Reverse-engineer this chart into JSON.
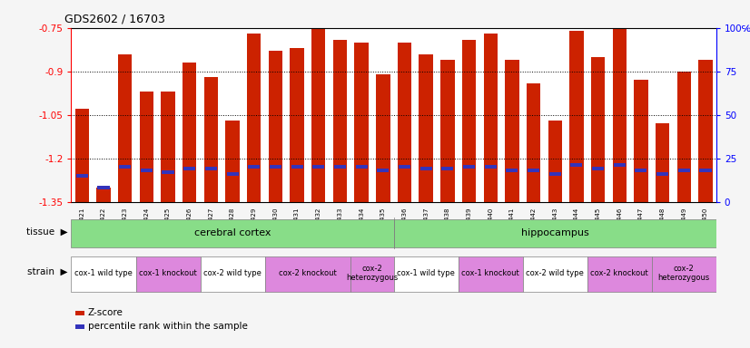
{
  "title": "GDS2602 / 16703",
  "samples": [
    "GSM121421",
    "GSM121422",
    "GSM121423",
    "GSM121424",
    "GSM121425",
    "GSM121426",
    "GSM121427",
    "GSM121428",
    "GSM121429",
    "GSM121430",
    "GSM121431",
    "GSM121432",
    "GSM121433",
    "GSM121434",
    "GSM121435",
    "GSM121436",
    "GSM121437",
    "GSM121438",
    "GSM121439",
    "GSM121440",
    "GSM121441",
    "GSM121442",
    "GSM121443",
    "GSM121444",
    "GSM121445",
    "GSM121446",
    "GSM121447",
    "GSM121448",
    "GSM121449",
    "GSM121450"
  ],
  "zscore": [
    -1.03,
    -1.3,
    -0.84,
    -0.97,
    -0.97,
    -0.87,
    -0.92,
    -1.07,
    -0.77,
    -0.83,
    -0.82,
    -0.75,
    -0.79,
    -0.8,
    -0.91,
    -0.8,
    -0.84,
    -0.86,
    -0.79,
    -0.77,
    -0.86,
    -0.94,
    -1.07,
    -0.76,
    -0.85,
    -0.75,
    -0.93,
    -1.08,
    -0.9,
    -0.86
  ],
  "percentile": [
    15,
    8,
    20,
    18,
    17,
    19,
    19,
    16,
    20,
    20,
    20,
    20,
    20,
    20,
    18,
    20,
    19,
    19,
    20,
    20,
    18,
    18,
    16,
    21,
    19,
    21,
    18,
    16,
    18,
    18
  ],
  "ymin": -1.35,
  "ymax": -0.75,
  "yticks": [
    -0.75,
    -0.9,
    -1.05,
    -1.2,
    -1.35
  ],
  "right_yticks": [
    0,
    25,
    50,
    75,
    100
  ],
  "bar_color": "#cc2200",
  "blue_color": "#3333bb",
  "tissue_defs": [
    {
      "label": "cerebral cortex",
      "start": 0,
      "end": 15
    },
    {
      "label": "hippocampus",
      "start": 15,
      "end": 30
    }
  ],
  "tissue_color": "#88dd88",
  "strain_groups": [
    {
      "label": "cox-1 wild type",
      "start": 0,
      "end": 3,
      "color": "#ffffff"
    },
    {
      "label": "cox-1 knockout",
      "start": 3,
      "end": 6,
      "color": "#dd88dd"
    },
    {
      "label": "cox-2 wild type",
      "start": 6,
      "end": 9,
      "color": "#ffffff"
    },
    {
      "label": "cox-2 knockout",
      "start": 9,
      "end": 13,
      "color": "#dd88dd"
    },
    {
      "label": "cox-2\nheterozygous",
      "start": 13,
      "end": 15,
      "color": "#dd88dd"
    },
    {
      "label": "cox-1 wild type",
      "start": 15,
      "end": 18,
      "color": "#ffffff"
    },
    {
      "label": "cox-1 knockout",
      "start": 18,
      "end": 21,
      "color": "#dd88dd"
    },
    {
      "label": "cox-2 wild type",
      "start": 21,
      "end": 24,
      "color": "#ffffff"
    },
    {
      "label": "cox-2 knockout",
      "start": 24,
      "end": 27,
      "color": "#dd88dd"
    },
    {
      "label": "cox-2\nheterozygous",
      "start": 27,
      "end": 30,
      "color": "#dd88dd"
    }
  ],
  "legend_zscore": "Z-score",
  "legend_pct": "percentile rank within the sample",
  "fig_bg": "#f5f5f5",
  "plot_bg": "#ffffff"
}
